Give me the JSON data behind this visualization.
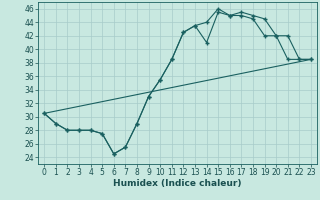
{
  "xlabel": "Humidex (Indice chaleur)",
  "xlim": [
    -0.5,
    23.5
  ],
  "ylim": [
    23,
    47
  ],
  "xticks": [
    0,
    1,
    2,
    3,
    4,
    5,
    6,
    7,
    8,
    9,
    10,
    11,
    12,
    13,
    14,
    15,
    16,
    17,
    18,
    19,
    20,
    21,
    22,
    23
  ],
  "yticks": [
    24,
    26,
    28,
    30,
    32,
    34,
    36,
    38,
    40,
    42,
    44,
    46
  ],
  "bg_color": "#c8e8e0",
  "grid_color": "#a8ccca",
  "line_color": "#1a6060",
  "line1_x": [
    0,
    1,
    2,
    3,
    4,
    5,
    6,
    7,
    8,
    9,
    10,
    11,
    12,
    13,
    14,
    15,
    16,
    17,
    18,
    19,
    20,
    21,
    22,
    23
  ],
  "line1_y": [
    30.5,
    29,
    28,
    28,
    28,
    27.5,
    24.5,
    25.5,
    29,
    33,
    35.5,
    38.5,
    42.5,
    43.5,
    44,
    46,
    45,
    45,
    44.5,
    42,
    42,
    38.5,
    38.5,
    38.5
  ],
  "line2_x": [
    0,
    1,
    2,
    3,
    4,
    5,
    6,
    7,
    8,
    9,
    10,
    11,
    12,
    13,
    14,
    15,
    16,
    17,
    18,
    19,
    20,
    21,
    22,
    23
  ],
  "line2_y": [
    30.5,
    29,
    28,
    28,
    28,
    27.5,
    24.5,
    25.5,
    29,
    33,
    35.5,
    38.5,
    42.5,
    43.5,
    41,
    45.5,
    45,
    45.5,
    45,
    44.5,
    42,
    42,
    38.5,
    38.5
  ],
  "line3_x": [
    0,
    23
  ],
  "line3_y": [
    30.5,
    38.5
  ],
  "tick_fontsize": 5.5,
  "xlabel_fontsize": 6.5
}
